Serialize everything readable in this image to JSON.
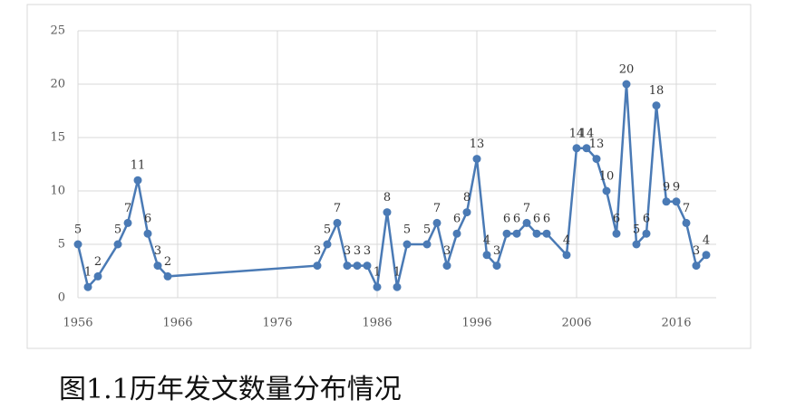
{
  "chart_data": {
    "type": "line",
    "caption": "图1.1历年发文数量分布情况",
    "x": [
      1956,
      1957,
      1958,
      1960,
      1961,
      1962,
      1963,
      1964,
      1965,
      1980,
      1981,
      1982,
      1983,
      1984,
      1985,
      1986,
      1987,
      1988,
      1989,
      1991,
      1992,
      1993,
      1994,
      1995,
      1996,
      1997,
      1998,
      1999,
      2000,
      2001,
      2002,
      2003,
      2005,
      2006,
      2007,
      2008,
      2009,
      2010,
      2011,
      2012,
      2013,
      2014,
      2015,
      2016,
      2017,
      2018,
      2019
    ],
    "series": [
      {
        "color": "#4a7ab5",
        "values": [
          5,
          1,
          2,
          5,
          7,
          11,
          6,
          3,
          2,
          3,
          5,
          7,
          3,
          3,
          3,
          1,
          8,
          1,
          5,
          5,
          7,
          3,
          6,
          8,
          13,
          4,
          3,
          6,
          6,
          7,
          6,
          6,
          4,
          14,
          14,
          13,
          10,
          6,
          20,
          5,
          6,
          18,
          9,
          9,
          7,
          3,
          4
        ]
      }
    ],
    "xlim": [
      1956,
      2020
    ],
    "xticks": [
      1956,
      1966,
      1976,
      1986,
      1996,
      2006,
      2016
    ],
    "ylim": [
      0,
      25
    ],
    "yticks": [
      0,
      5,
      10,
      15,
      20,
      25
    ],
    "grid": true
  }
}
